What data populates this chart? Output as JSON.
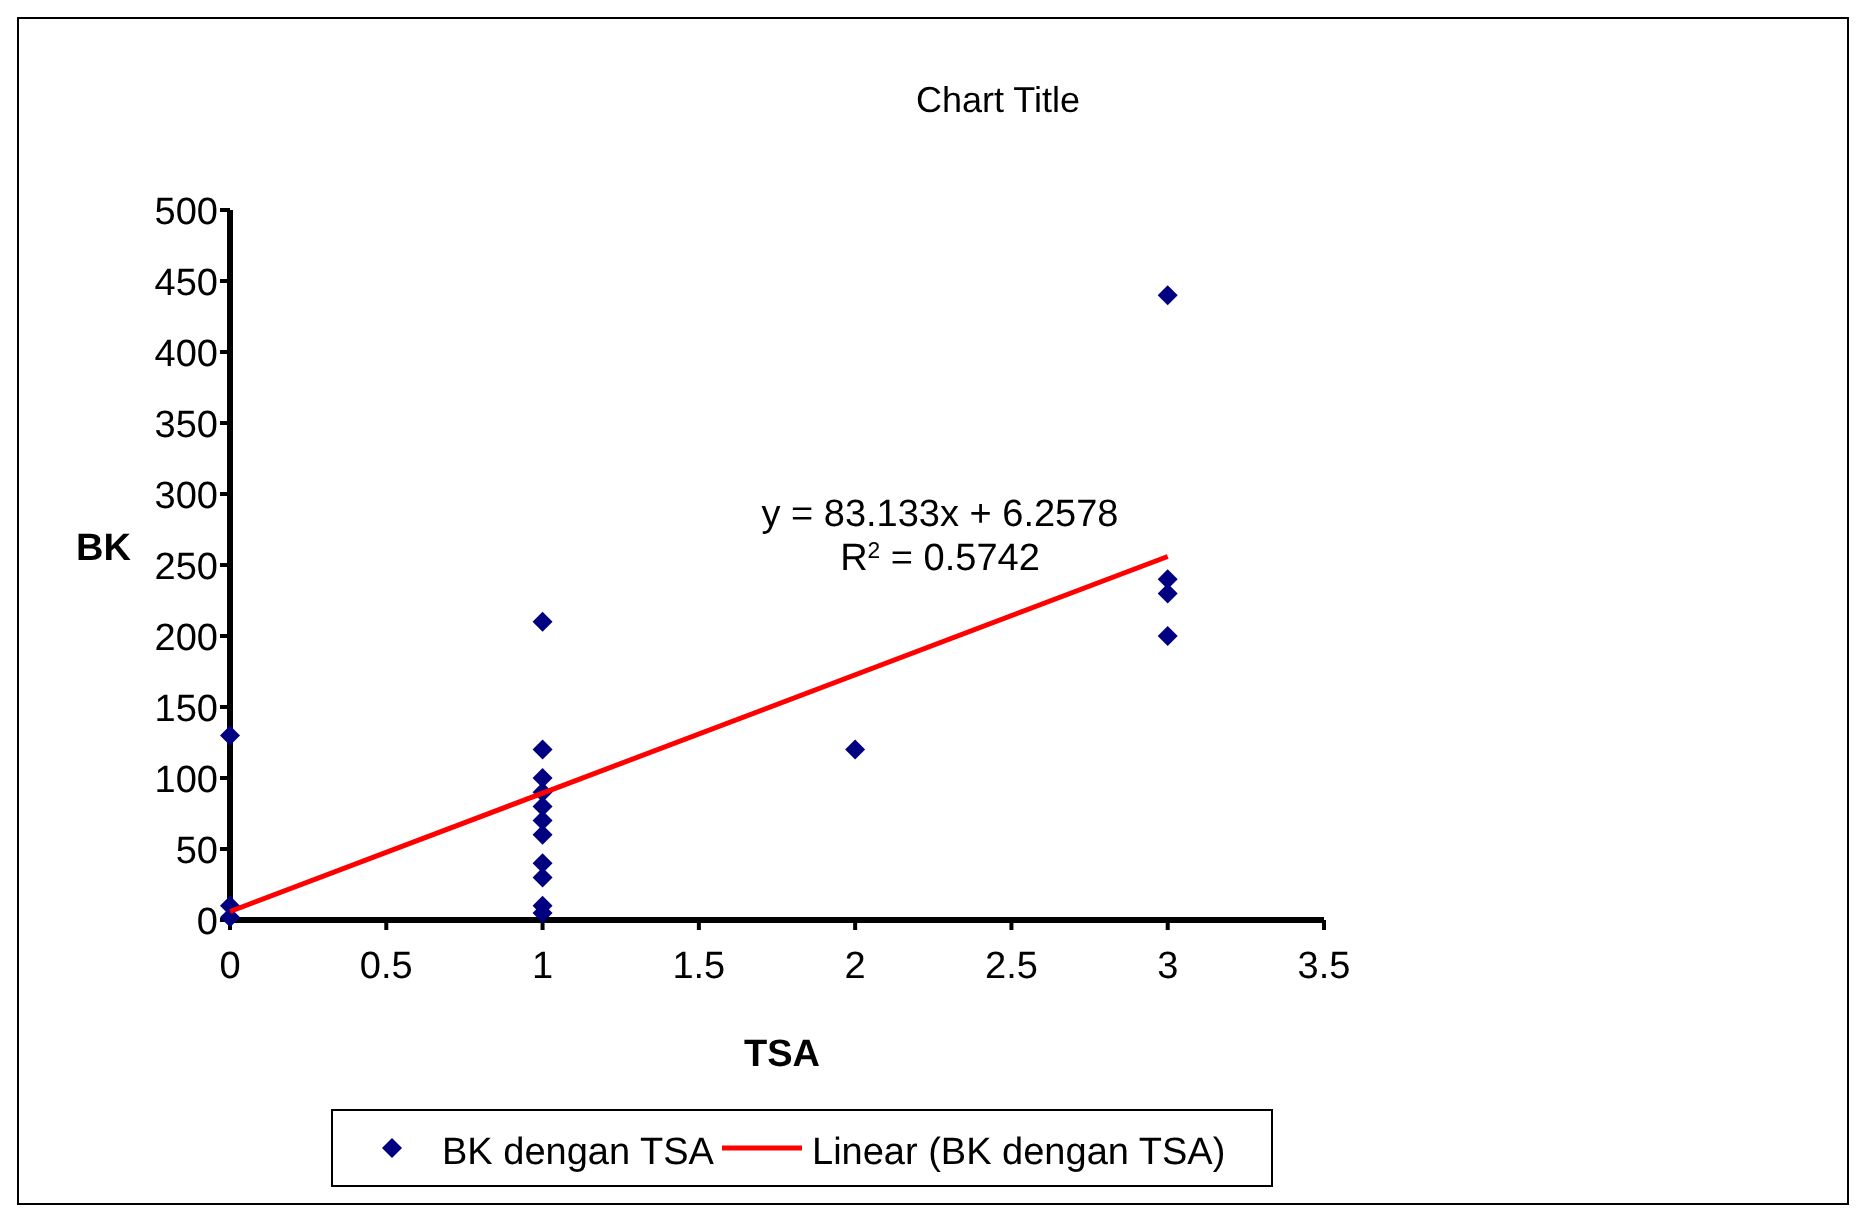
{
  "chart_data": {
    "type": "scatter",
    "title": "Chart Title",
    "xlabel": "TSA",
    "ylabel": "BK",
    "xlim": [
      0,
      3.5
    ],
    "xticks": [
      0,
      0.5,
      1,
      1.5,
      2,
      2.5,
      3,
      3.5
    ],
    "ylim": [
      0,
      500
    ],
    "yticks": [
      0,
      50,
      100,
      150,
      200,
      250,
      300,
      350,
      400,
      450,
      500
    ],
    "series": [
      {
        "name": "BK dengan TSA",
        "color": "#000080",
        "marker": "diamond",
        "x": [
          0,
          0,
          0,
          1,
          1,
          1,
          1,
          1,
          1,
          1,
          1,
          1,
          1,
          1,
          2,
          3,
          3,
          3,
          3
        ],
        "values": [
          130,
          10,
          2,
          210,
          120,
          100,
          90,
          80,
          70,
          60,
          40,
          30,
          10,
          5,
          120,
          440,
          240,
          230,
          200
        ]
      },
      {
        "name": "Linear (BK dengan TSA)",
        "type": "line",
        "color": "#ff0000",
        "x": [
          0,
          3
        ],
        "values": [
          6,
          256
        ]
      }
    ],
    "annotations": [
      "y = 83.133x + 6.2578",
      "R$^{2}$ = 0.5742"
    ],
    "grid": false,
    "legend": "bottom"
  }
}
